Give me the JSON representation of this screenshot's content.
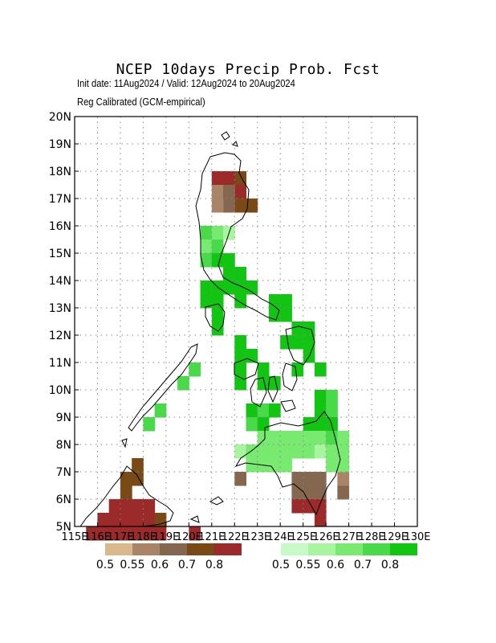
{
  "header": {
    "title": "NCEP 10days Precip Prob. Fcst",
    "subtitle": "Init date: 11Aug2024 / Valid: 12Aug2024 to 20Aug2024",
    "method": "Reg Calibrated (GCM-empirical)"
  },
  "axes": {
    "lat_labels": [
      "5N",
      "6N",
      "7N",
      "8N",
      "9N",
      "10N",
      "11N",
      "12N",
      "13N",
      "14N",
      "15N",
      "16N",
      "17N",
      "18N",
      "19N",
      "20N"
    ],
    "lon_labels": [
      "115E",
      "116E",
      "117E",
      "118E",
      "119E",
      "120E",
      "121E",
      "122E",
      "123E",
      "124E",
      "125E",
      "126E",
      "127E",
      "128E",
      "129E",
      "130E"
    ],
    "lat_range": [
      5,
      20
    ],
    "lon_range": [
      115,
      130
    ],
    "grid": true
  },
  "legend": {
    "dry": {
      "labels": [
        "0.5",
        "0.55",
        "0.6",
        "0.7",
        "0.8"
      ],
      "colors": [
        "#d9b98c",
        "#a98467",
        "#85664f",
        "#7a4a16",
        "#9b2a2a"
      ]
    },
    "wet": {
      "labels": [
        "0.5",
        "0.55",
        "0.6",
        "0.7",
        "0.8"
      ],
      "colors": [
        "#c8fac8",
        "#a8f5a0",
        "#78ea70",
        "#48da48",
        "#13c513"
      ]
    }
  },
  "map_data": {
    "cell_size_deg": 0.5,
    "dry_cells": [
      [
        121,
        17.5,
        4
      ],
      [
        121.5,
        17.5,
        4
      ],
      [
        122,
        17.5,
        3
      ],
      [
        122,
        17,
        4
      ],
      [
        121,
        17,
        1
      ],
      [
        121.5,
        17,
        2
      ],
      [
        122,
        16.5,
        3
      ],
      [
        121.5,
        16.5,
        2
      ],
      [
        121,
        16.5,
        1
      ],
      [
        122.5,
        16.5,
        3
      ],
      [
        122,
        6.5,
        2
      ],
      [
        124.5,
        6.5,
        2
      ],
      [
        125,
        6.5,
        2
      ],
      [
        125.5,
        6.5,
        2
      ],
      [
        124.5,
        6,
        2
      ],
      [
        125,
        6,
        2
      ],
      [
        125.5,
        6,
        2
      ],
      [
        126.5,
        6,
        2
      ],
      [
        126.5,
        6.5,
        1
      ],
      [
        124.5,
        5.5,
        4
      ],
      [
        125,
        5.5,
        4
      ],
      [
        125.5,
        5.5,
        4
      ],
      [
        125.5,
        5,
        4
      ],
      [
        117,
        6.5,
        3
      ],
      [
        117.5,
        6.5,
        3
      ],
      [
        117.5,
        7,
        3
      ],
      [
        117,
        6,
        3
      ],
      [
        116.5,
        5.5,
        4
      ],
      [
        117,
        5.5,
        4
      ],
      [
        117.5,
        5.5,
        4
      ],
      [
        118,
        5.5,
        4
      ],
      [
        116.5,
        5,
        4
      ],
      [
        117,
        5,
        4
      ],
      [
        117.5,
        5,
        4
      ],
      [
        118,
        5,
        4
      ],
      [
        118.5,
        5,
        3
      ],
      [
        116,
        5,
        4
      ],
      [
        115.5,
        4.5,
        4
      ],
      [
        116,
        4.5,
        4
      ],
      [
        116.5,
        4.5,
        4
      ],
      [
        117,
        4.5,
        4
      ],
      [
        117.5,
        4.5,
        4
      ],
      [
        118,
        4.5,
        4
      ],
      [
        118.5,
        4.5,
        4
      ],
      [
        120,
        4.5,
        4
      ]
    ],
    "wet_cells": [
      [
        120.5,
        15.5,
        3
      ],
      [
        121,
        15.5,
        2
      ],
      [
        121.5,
        15.5,
        1
      ],
      [
        120.5,
        15,
        2
      ],
      [
        121,
        15,
        3
      ],
      [
        120.5,
        14.5,
        3
      ],
      [
        121,
        14.5,
        4
      ],
      [
        121.5,
        14.5,
        4
      ],
      [
        121.5,
        14,
        4
      ],
      [
        120.5,
        13.5,
        4
      ],
      [
        121,
        13.5,
        4
      ],
      [
        121.5,
        13.5,
        4
      ],
      [
        122,
        13.5,
        4
      ],
      [
        122.5,
        13.5,
        4
      ],
      [
        120.5,
        13,
        4
      ],
      [
        121,
        13,
        4
      ],
      [
        122,
        13,
        4
      ],
      [
        121,
        12.5,
        4
      ],
      [
        121,
        12,
        4
      ],
      [
        122,
        14,
        4
      ],
      [
        123.5,
        13,
        4
      ],
      [
        124,
        13,
        4
      ],
      [
        123.5,
        12.5,
        4
      ],
      [
        124,
        12.5,
        4
      ],
      [
        124.5,
        12,
        4
      ],
      [
        125,
        12,
        4
      ],
      [
        124,
        11.5,
        4
      ],
      [
        124.5,
        11.5,
        4
      ],
      [
        125,
        11.5,
        4
      ],
      [
        125,
        11,
        4
      ],
      [
        124.5,
        10.5,
        4
      ],
      [
        125.5,
        10.5,
        4
      ],
      [
        122,
        11.5,
        4
      ],
      [
        122,
        11,
        4
      ],
      [
        122.5,
        11,
        4
      ],
      [
        122,
        10.5,
        4
      ],
      [
        122,
        10,
        4
      ],
      [
        123,
        10.5,
        4
      ],
      [
        123,
        10,
        4
      ],
      [
        123.5,
        10,
        4
      ],
      [
        122.5,
        9,
        4
      ],
      [
        123,
        9,
        3
      ],
      [
        123.5,
        9,
        4
      ],
      [
        122.5,
        8.5,
        3
      ],
      [
        123,
        8.5,
        4
      ],
      [
        125.5,
        9.5,
        4
      ],
      [
        126,
        9.5,
        3
      ],
      [
        125.5,
        9,
        4
      ],
      [
        126,
        9,
        3
      ],
      [
        125,
        8.5,
        4
      ],
      [
        125.5,
        8.5,
        4
      ],
      [
        126,
        8.5,
        4
      ],
      [
        123,
        8,
        2
      ],
      [
        123.5,
        8,
        2
      ],
      [
        124,
        8,
        2
      ],
      [
        124.5,
        8,
        2
      ],
      [
        125,
        8,
        2
      ],
      [
        125.5,
        8,
        2
      ],
      [
        126,
        8,
        3
      ],
      [
        126.5,
        8,
        2
      ],
      [
        122,
        7.5,
        1
      ],
      [
        122.5,
        7.5,
        2
      ],
      [
        123,
        7.5,
        2
      ],
      [
        123.5,
        7.5,
        2
      ],
      [
        124,
        7.5,
        2
      ],
      [
        124.5,
        7.5,
        2
      ],
      [
        125,
        7.5,
        2
      ],
      [
        125.5,
        7.5,
        1
      ],
      [
        126,
        7.5,
        2
      ],
      [
        126.5,
        7.5,
        2
      ],
      [
        122.5,
        7,
        2
      ],
      [
        123,
        7,
        2
      ],
      [
        123.5,
        7,
        2
      ],
      [
        124,
        7,
        2
      ],
      [
        126,
        7,
        2
      ],
      [
        126.5,
        7,
        2
      ],
      [
        118,
        8.5,
        3
      ],
      [
        118.5,
        9,
        3
      ],
      [
        119.5,
        10,
        3
      ],
      [
        120,
        10.5,
        3
      ]
    ]
  }
}
